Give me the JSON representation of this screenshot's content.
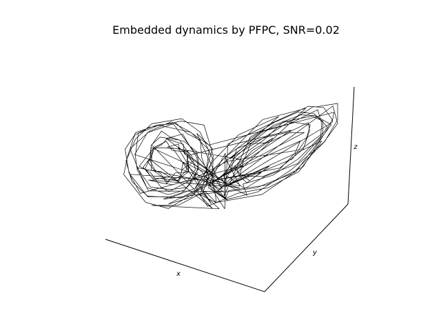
{
  "chart_data": {
    "type": "line",
    "projection": "3d",
    "title": "Embedded dynamics by PFPC, SNR=0.02",
    "xlabel": "x",
    "ylabel": "y",
    "zlabel": "z",
    "grid": false,
    "ticks": "hidden",
    "line_color": "#000000",
    "trajectory_points": 280
  }
}
